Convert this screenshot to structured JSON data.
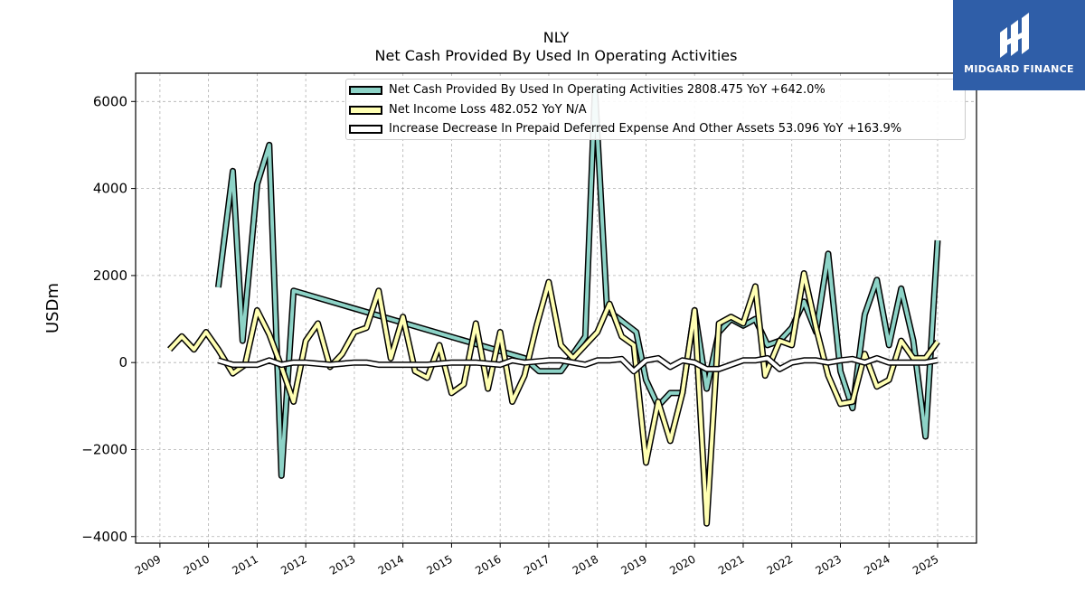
{
  "chart_data": {
    "type": "line",
    "title": "NLY",
    "subtitle": "Net Cash Provided By Used In Operating Activities",
    "ylabel": "USDm",
    "xlabel": "",
    "xlim": [
      2008.5,
      2025.8
    ],
    "ylim": [
      -4150,
      6650
    ],
    "xticks": [
      "2009",
      "2010",
      "2011",
      "2012",
      "2013",
      "2014",
      "2015",
      "2016",
      "2017",
      "2018",
      "2019",
      "2020",
      "2021",
      "2022",
      "2023",
      "2024",
      "2025"
    ],
    "yticks": [
      "−4000",
      "−2000",
      "0",
      "2000",
      "4000",
      "6000"
    ],
    "grid": true,
    "legend_position": "top-right",
    "series": [
      {
        "name": "Net Cash Provided By Used In Operating Activities",
        "legend": "Net Cash Provided By Used In Operating Activities  2808.475 YoY +642.0%",
        "color": "#8dd3c7",
        "points": [
          [
            2010.2,
            1730
          ],
          [
            2010.5,
            4400
          ],
          [
            2010.7,
            500
          ],
          [
            2011.0,
            4100
          ],
          [
            2011.25,
            5000
          ],
          [
            2011.5,
            -2600
          ],
          [
            2011.75,
            1650
          ],
          [
            2016.5,
            100
          ],
          [
            2016.8,
            -200
          ],
          [
            2017.25,
            -200
          ],
          [
            2017.75,
            600
          ],
          [
            2017.95,
            6300
          ],
          [
            2018.2,
            1200
          ],
          [
            2018.45,
            1000
          ],
          [
            2018.8,
            700
          ],
          [
            2019.0,
            -400
          ],
          [
            2019.25,
            -1000
          ],
          [
            2019.5,
            -700
          ],
          [
            2019.75,
            -700
          ],
          [
            2020.0,
            1200
          ],
          [
            2020.25,
            -600
          ],
          [
            2020.5,
            700
          ],
          [
            2020.75,
            1000
          ],
          [
            2021.0,
            850
          ],
          [
            2021.25,
            1000
          ],
          [
            2021.5,
            400
          ],
          [
            2021.75,
            500
          ],
          [
            2022.0,
            800
          ],
          [
            2022.25,
            1400
          ],
          [
            2022.5,
            700
          ],
          [
            2022.75,
            2500
          ],
          [
            2023.0,
            -200
          ],
          [
            2023.25,
            -1050
          ],
          [
            2023.5,
            1100
          ],
          [
            2023.75,
            1900
          ],
          [
            2024.0,
            400
          ],
          [
            2024.25,
            1700
          ],
          [
            2024.5,
            500
          ],
          [
            2024.75,
            -1700
          ],
          [
            2025.0,
            2808
          ]
        ]
      },
      {
        "name": "Net Income Loss",
        "legend": "Net Income Loss  482.052 YoY N/A",
        "color": "#ffffb3",
        "points": [
          [
            2009.2,
            300
          ],
          [
            2009.45,
            600
          ],
          [
            2009.7,
            300
          ],
          [
            2009.95,
            700
          ],
          [
            2010.2,
            300
          ],
          [
            2010.5,
            -250
          ],
          [
            2010.75,
            -50
          ],
          [
            2011.0,
            1200
          ],
          [
            2011.25,
            650
          ],
          [
            2011.5,
            -100
          ],
          [
            2011.75,
            -900
          ],
          [
            2012.0,
            500
          ],
          [
            2012.25,
            900
          ],
          [
            2012.5,
            -100
          ],
          [
            2012.75,
            200
          ],
          [
            2013.0,
            700
          ],
          [
            2013.25,
            800
          ],
          [
            2013.5,
            1650
          ],
          [
            2013.75,
            100
          ],
          [
            2014.0,
            1050
          ],
          [
            2014.25,
            -200
          ],
          [
            2014.5,
            -350
          ],
          [
            2014.75,
            400
          ],
          [
            2015.0,
            -700
          ],
          [
            2015.25,
            -500
          ],
          [
            2015.5,
            900
          ],
          [
            2015.75,
            -600
          ],
          [
            2016.0,
            700
          ],
          [
            2016.25,
            -900
          ],
          [
            2016.5,
            -300
          ],
          [
            2016.75,
            850
          ],
          [
            2017.0,
            1850
          ],
          [
            2017.25,
            400
          ],
          [
            2017.5,
            100
          ],
          [
            2017.75,
            400
          ],
          [
            2018.0,
            700
          ],
          [
            2018.25,
            1350
          ],
          [
            2018.5,
            600
          ],
          [
            2018.75,
            400
          ],
          [
            2019.0,
            -2300
          ],
          [
            2019.25,
            -900
          ],
          [
            2019.5,
            -1800
          ],
          [
            2019.75,
            -700
          ],
          [
            2020.0,
            1200
          ],
          [
            2020.25,
            -3700
          ],
          [
            2020.5,
            900
          ],
          [
            2020.75,
            1050
          ],
          [
            2021.0,
            900
          ],
          [
            2021.25,
            1750
          ],
          [
            2021.45,
            -300
          ],
          [
            2021.75,
            500
          ],
          [
            2022.0,
            400
          ],
          [
            2022.25,
            2050
          ],
          [
            2022.5,
            800
          ],
          [
            2022.75,
            -300
          ],
          [
            2023.0,
            -950
          ],
          [
            2023.25,
            -900
          ],
          [
            2023.5,
            200
          ],
          [
            2023.75,
            -550
          ],
          [
            2024.0,
            -400
          ],
          [
            2024.25,
            500
          ],
          [
            2024.5,
            100
          ],
          [
            2024.75,
            100
          ],
          [
            2025.0,
            482
          ]
        ]
      },
      {
        "name": "Increase Decrease In Prepaid Deferred Expense And Other Assets",
        "legend": "Increase Decrease In Prepaid Deferred Expense And Other Assets  53.096 YoY +163.9%",
        "color": "#ffffff",
        "points": [
          [
            2010.2,
            50
          ],
          [
            2010.5,
            -50
          ],
          [
            2010.75,
            -50
          ],
          [
            2011.0,
            -50
          ],
          [
            2011.25,
            50
          ],
          [
            2011.5,
            -50
          ],
          [
            2011.75,
            0
          ],
          [
            2012.0,
            0
          ],
          [
            2012.5,
            -50
          ],
          [
            2013.0,
            0
          ],
          [
            2013.25,
            0
          ],
          [
            2013.5,
            -50
          ],
          [
            2014.0,
            -50
          ],
          [
            2014.5,
            -50
          ],
          [
            2015.0,
            0
          ],
          [
            2015.5,
            0
          ],
          [
            2016.0,
            -50
          ],
          [
            2016.25,
            50
          ],
          [
            2016.5,
            0
          ],
          [
            2017.0,
            50
          ],
          [
            2017.25,
            50
          ],
          [
            2017.5,
            0
          ],
          [
            2017.75,
            -50
          ],
          [
            2018.0,
            50
          ],
          [
            2018.25,
            50
          ],
          [
            2018.5,
            80
          ],
          [
            2018.75,
            -200
          ],
          [
            2019.0,
            50
          ],
          [
            2019.25,
            100
          ],
          [
            2019.5,
            -100
          ],
          [
            2019.75,
            50
          ],
          [
            2020.0,
            0
          ],
          [
            2020.25,
            -150
          ],
          [
            2020.5,
            -150
          ],
          [
            2020.75,
            -50
          ],
          [
            2021.0,
            50
          ],
          [
            2021.25,
            50
          ],
          [
            2021.5,
            100
          ],
          [
            2021.75,
            -150
          ],
          [
            2022.0,
            0
          ],
          [
            2022.25,
            50
          ],
          [
            2022.5,
            50
          ],
          [
            2022.75,
            0
          ],
          [
            2023.0,
            50
          ],
          [
            2023.25,
            80
          ],
          [
            2023.5,
            0
          ],
          [
            2023.75,
            100
          ],
          [
            2024.0,
            0
          ],
          [
            2024.25,
            0
          ],
          [
            2024.5,
            0
          ],
          [
            2024.75,
            0
          ],
          [
            2025.0,
            53
          ]
        ]
      }
    ]
  },
  "logo": {
    "text": "MIDGARD FINANCE",
    "color": "#2f5ea8"
  }
}
